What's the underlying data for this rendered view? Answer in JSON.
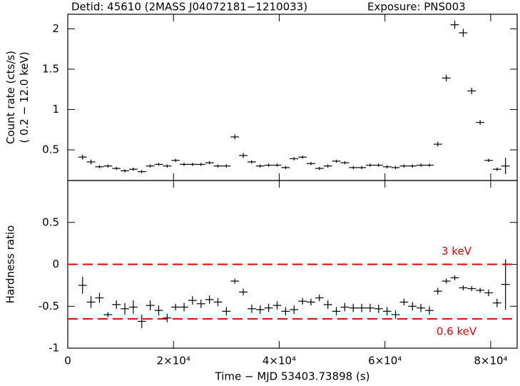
{
  "chart_data": [
    {
      "type": "errorbar",
      "title": "Detid: 45610 (2MASS J04072181−1210033)",
      "subtitle": "Exposure: PNS003",
      "ylabel": [
        "Count rate (cts/s)",
        "( 0.2 − 12.0 keV)"
      ],
      "x": [
        2800,
        4400,
        6000,
        7600,
        9200,
        10800,
        12400,
        14000,
        15600,
        17200,
        18800,
        20400,
        22000,
        23600,
        25200,
        26800,
        28400,
        30000,
        31600,
        33200,
        34800,
        36400,
        38000,
        39600,
        41200,
        42800,
        44400,
        46000,
        47600,
        49200,
        50800,
        52400,
        54000,
        55600,
        57200,
        58800,
        60400,
        62000,
        63600,
        65200,
        66800,
        68400,
        70000,
        71600,
        73200,
        74800,
        76400,
        78000,
        79600,
        81200,
        82800
      ],
      "xerr": 800,
      "values": [
        0.41,
        0.35,
        0.29,
        0.3,
        0.27,
        0.24,
        0.26,
        0.23,
        0.3,
        0.32,
        0.3,
        0.37,
        0.32,
        0.32,
        0.32,
        0.34,
        0.3,
        0.3,
        0.66,
        0.43,
        0.35,
        0.3,
        0.31,
        0.31,
        0.28,
        0.39,
        0.41,
        0.33,
        0.27,
        0.3,
        0.36,
        0.34,
        0.28,
        0.28,
        0.31,
        0.31,
        0.29,
        0.28,
        0.3,
        0.3,
        0.31,
        0.31,
        0.57,
        1.39,
        2.05,
        1.95,
        1.23,
        0.84,
        0.37,
        0.26,
        0.3
      ],
      "errors": [
        0.03,
        0.03,
        0.02,
        0.02,
        0.02,
        0.02,
        0.02,
        0.02,
        0.02,
        0.02,
        0.02,
        0.02,
        0.02,
        0.02,
        0.02,
        0.02,
        0.02,
        0.02,
        0.03,
        0.03,
        0.02,
        0.02,
        0.02,
        0.02,
        0.02,
        0.02,
        0.02,
        0.02,
        0.02,
        0.02,
        0.02,
        0.02,
        0.02,
        0.02,
        0.02,
        0.02,
        0.02,
        0.02,
        0.02,
        0.02,
        0.02,
        0.02,
        0.03,
        0.04,
        0.05,
        0.05,
        0.04,
        0.03,
        0.02,
        0.02,
        0.1
      ],
      "color": "#000000",
      "xlim": [
        0,
        85000
      ],
      "xticks": [
        0,
        20000,
        40000,
        60000,
        80000
      ],
      "ylim": [
        0.12,
        2.18
      ],
      "yticks": [
        0.5,
        1,
        1.5,
        2
      ]
    },
    {
      "type": "errorbar",
      "ylabel": [
        "Hardness ratio"
      ],
      "xlabel": "Time − MJD  53403.73898 (s)",
      "x": [
        2800,
        4400,
        6000,
        7600,
        9200,
        10800,
        12400,
        14000,
        15600,
        17200,
        18800,
        20400,
        22000,
        23600,
        25200,
        26800,
        28400,
        30000,
        31600,
        33200,
        34800,
        36400,
        38000,
        39600,
        41200,
        42800,
        44400,
        46000,
        47600,
        49200,
        50800,
        52400,
        54000,
        55600,
        57200,
        58800,
        60400,
        62000,
        63600,
        65200,
        66800,
        68400,
        70000,
        71600,
        73200,
        74800,
        76400,
        78000,
        79600,
        81200,
        82800
      ],
      "xerr": 800,
      "values": [
        -0.25,
        -0.45,
        -0.4,
        -0.6,
        -0.48,
        -0.53,
        -0.51,
        -0.68,
        -0.49,
        -0.55,
        -0.64,
        -0.51,
        -0.51,
        -0.43,
        -0.47,
        -0.42,
        -0.45,
        -0.56,
        -0.2,
        -0.33,
        -0.53,
        -0.54,
        -0.52,
        -0.49,
        -0.56,
        -0.54,
        -0.44,
        -0.45,
        -0.4,
        -0.48,
        -0.56,
        -0.51,
        -0.52,
        -0.52,
        -0.52,
        -0.53,
        -0.56,
        -0.6,
        -0.45,
        -0.5,
        -0.52,
        -0.55,
        -0.32,
        -0.2,
        -0.16,
        -0.28,
        -0.29,
        -0.31,
        -0.34,
        -0.46,
        -0.24
      ],
      "errors": [
        0.1,
        0.07,
        0.06,
        0.03,
        0.05,
        0.07,
        0.08,
        0.08,
        0.06,
        0.06,
        0.05,
        0.04,
        0.05,
        0.05,
        0.05,
        0.05,
        0.05,
        0.05,
        0.03,
        0.04,
        0.05,
        0.05,
        0.05,
        0.05,
        0.05,
        0.05,
        0.04,
        0.04,
        0.04,
        0.05,
        0.05,
        0.05,
        0.05,
        0.05,
        0.05,
        0.05,
        0.05,
        0.05,
        0.04,
        0.05,
        0.05,
        0.05,
        0.04,
        0.03,
        0.03,
        0.03,
        0.03,
        0.03,
        0.04,
        0.05,
        0.3
      ],
      "color": "#000000",
      "xlim": [
        0,
        85000
      ],
      "xticks": [
        0,
        {
          "value": 20000,
          "label": "2×10⁴"
        },
        {
          "value": 40000,
          "label": "4×10⁴"
        },
        {
          "value": 60000,
          "label": "6×10⁴"
        },
        {
          "value": 80000,
          "label": "8×10⁴"
        }
      ],
      "ylim": [
        -1,
        1
      ],
      "yticks": [
        -1,
        -0.5,
        0,
        0.5
      ],
      "hlines": [
        {
          "value": 0,
          "label": "3 keV",
          "color": "#e00000"
        },
        {
          "value": -0.65,
          "label": "0.6 keV",
          "color": "#e00000"
        }
      ]
    }
  ]
}
